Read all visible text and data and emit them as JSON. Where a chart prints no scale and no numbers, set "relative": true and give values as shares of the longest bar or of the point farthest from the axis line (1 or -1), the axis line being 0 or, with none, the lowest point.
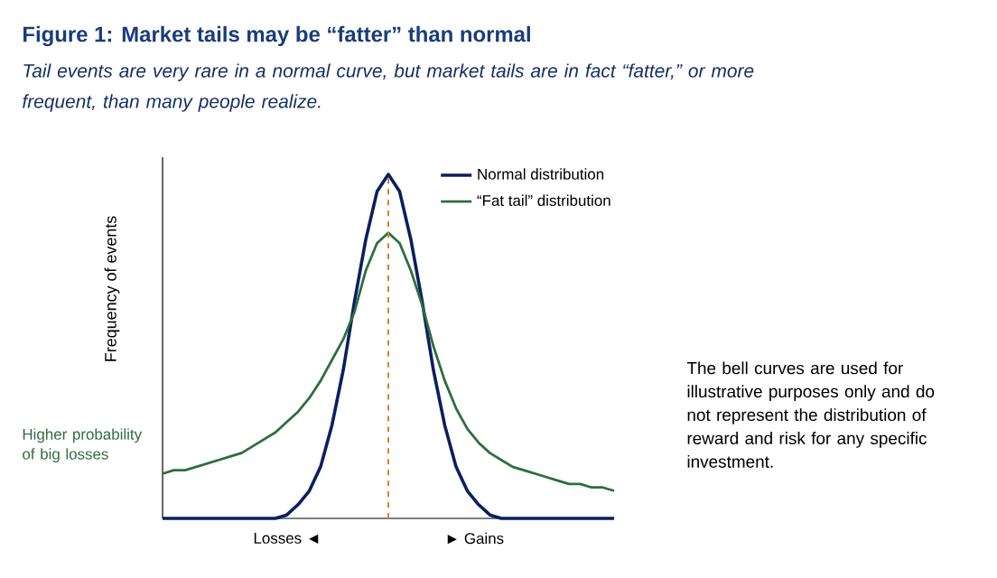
{
  "chart_data": {
    "type": "line",
    "relative": true,
    "title": "Figure 1: Market tails may be “fatter” than normal",
    "subtitle": "Tail events are very rare in a normal curve, but market tails are in fact “fatter,” or more frequent, than many people realize.",
    "ylabel": "Frequency of events",
    "categories": [
      null,
      null,
      null,
      null,
      null,
      null,
      null,
      null,
      null,
      null,
      null,
      null,
      null,
      null,
      null,
      null,
      null,
      null,
      null,
      null,
      null,
      null,
      null,
      null,
      null,
      null,
      null,
      null,
      null,
      null,
      null,
      null,
      null,
      null,
      null,
      null,
      null,
      null,
      null,
      null,
      null
    ],
    "series": [
      {
        "name": "Normal distribution",
        "color": "#0b1f5e",
        "values": [
          0,
          0,
          0,
          0,
          0,
          0,
          0,
          0,
          0,
          0,
          0,
          0.01,
          0.04,
          0.08,
          0.15,
          0.27,
          0.43,
          0.63,
          0.81,
          0.95,
          1,
          0.95,
          0.81,
          0.63,
          0.43,
          0.27,
          0.15,
          0.08,
          0.04,
          0.01,
          0,
          0,
          0,
          0,
          0,
          0,
          0,
          0,
          0,
          0,
          0
        ]
      },
      {
        "name": "“Fat tail” distribution",
        "color": "#2e6e3e",
        "values": [
          0.13,
          0.14,
          0.14,
          0.15,
          0.16,
          0.17,
          0.18,
          0.19,
          0.21,
          0.23,
          0.25,
          0.28,
          0.31,
          0.35,
          0.4,
          0.46,
          0.52,
          0.6,
          0.72,
          0.8,
          0.83,
          0.8,
          0.72,
          0.62,
          0.5,
          0.4,
          0.32,
          0.26,
          0.22,
          0.19,
          0.17,
          0.15,
          0.14,
          0.13,
          0.12,
          0.11,
          0.1,
          0.1,
          0.09,
          0.09,
          0.08
        ]
      }
    ],
    "legend": "top right",
    "marker": "none",
    "line_style": "solid",
    "annotations": [
      "Higher probability of big losses",
      "Losses ◄",
      "► Gains",
      "The bell curves are used for illustrative purposes only and do not represent the distribution of reward and risk for any specific investment."
    ]
  }
}
